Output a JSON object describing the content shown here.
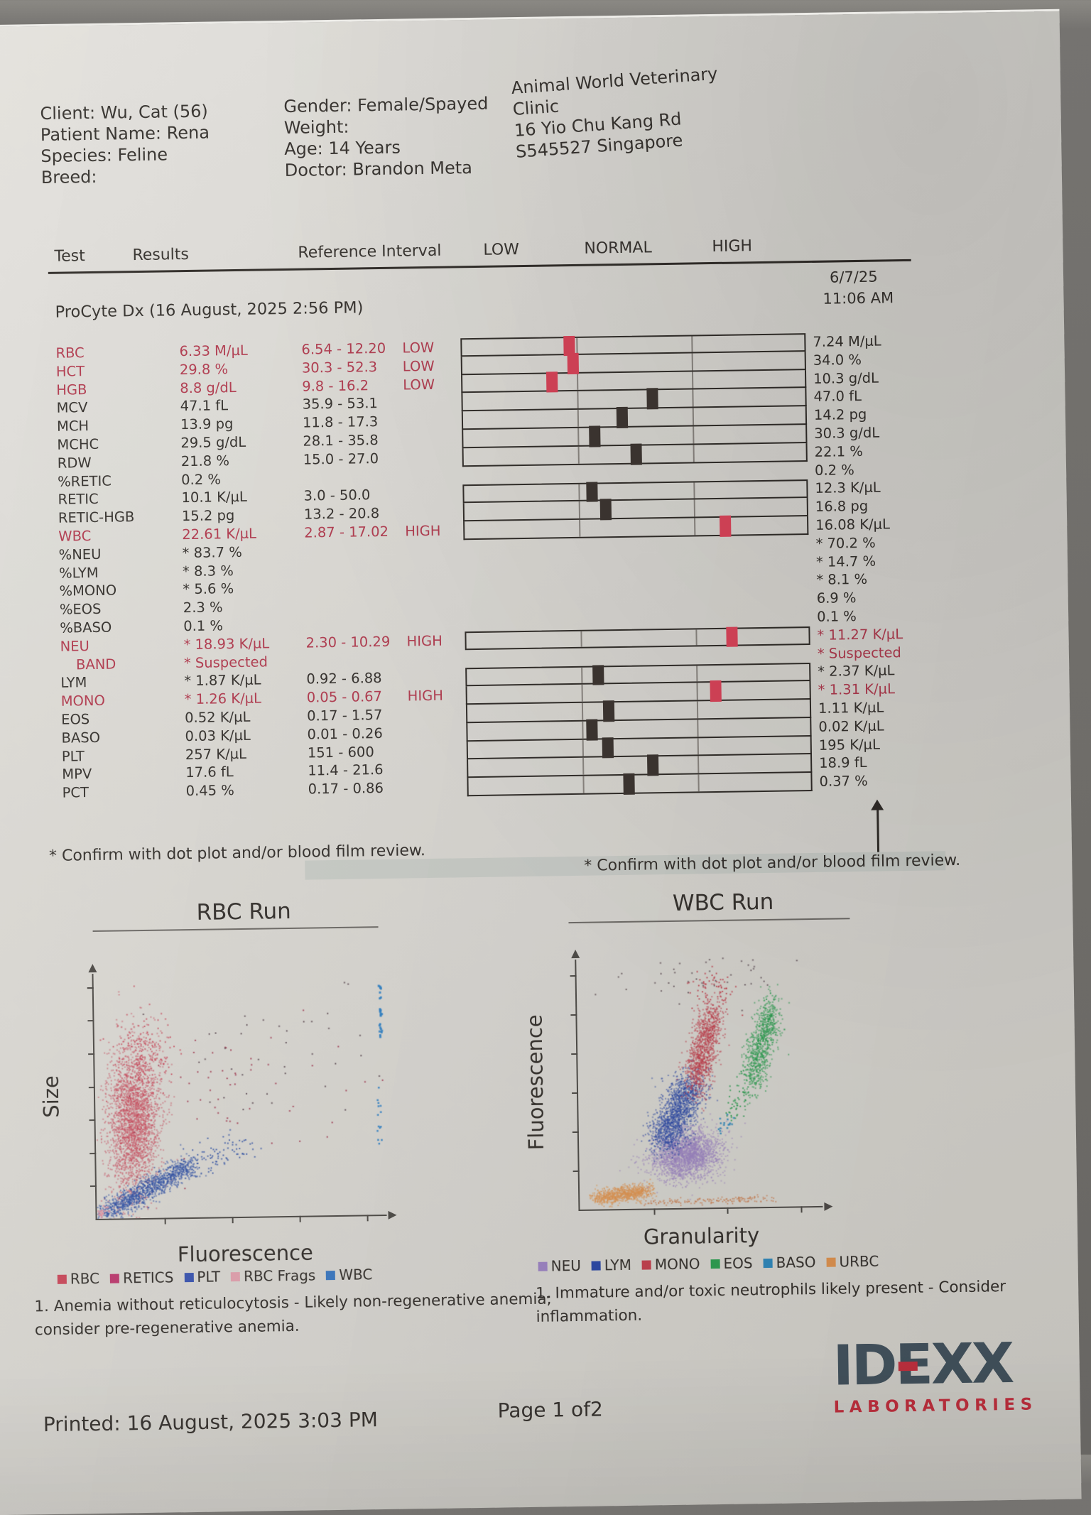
{
  "header": {
    "left": [
      "Client: Wu, Cat (56)",
      "Patient Name: Rena",
      "Species: Feline",
      "Breed:"
    ],
    "middle": [
      "Gender: Female/Spayed",
      "Weight:",
      "Age: 14 Years",
      "Doctor: Brandon Meta"
    ],
    "clinic": [
      "Animal World Veterinary",
      "Clinic",
      "16 Yio Chu Kang Rd",
      "S545527 Singapore"
    ]
  },
  "table": {
    "columns": [
      "Test",
      "Results",
      "Reference Interval",
      "LOW",
      "NORMAL",
      "HIGH"
    ],
    "prev_run_date": "6/7/25",
    "prev_run_time": "11:06 AM",
    "section_title": "ProCyte Dx (16 August, 2025 2:56 PM)",
    "footnote": "* Confirm with dot plot and/or blood film review.",
    "footnote_right": "* Confirm with dot plot and/or blood film review.",
    "marker_colors": {
      "abnormal": "#cc4054",
      "normal": "#3a332f"
    },
    "rows": [
      {
        "test": "RBC",
        "result": "6.33 M/µL",
        "ref": "6.54 - 12.20",
        "flag": "LOW",
        "prev": "7.24 M/µL",
        "red": true,
        "prev_red": false,
        "indent": false,
        "bar": {
          "pos": 0.31,
          "red": true,
          "first": true,
          "last": false
        }
      },
      {
        "test": "HCT",
        "result": "29.8 %",
        "ref": "30.3 - 52.3",
        "flag": "LOW",
        "prev": "34.0 %",
        "red": true,
        "prev_red": false,
        "indent": false,
        "bar": {
          "pos": 0.32,
          "red": true,
          "first": false,
          "last": false
        }
      },
      {
        "test": "HGB",
        "result": "8.8 g/dL",
        "ref": "9.8 - 16.2",
        "flag": "LOW",
        "prev": "10.3 g/dL",
        "red": true,
        "prev_red": false,
        "indent": false,
        "bar": {
          "pos": 0.26,
          "red": true,
          "first": false,
          "last": false
        }
      },
      {
        "test": "MCV",
        "result": "47.1 fL",
        "ref": "35.9 - 53.1",
        "flag": "",
        "prev": "47.0 fL",
        "red": false,
        "prev_red": false,
        "indent": false,
        "bar": {
          "pos": 0.55,
          "red": false,
          "first": false,
          "last": false
        }
      },
      {
        "test": "MCH",
        "result": "13.9 pg",
        "ref": "11.8 - 17.3",
        "flag": "",
        "prev": "14.2 pg",
        "red": false,
        "prev_red": false,
        "indent": false,
        "bar": {
          "pos": 0.46,
          "red": false,
          "first": false,
          "last": false
        }
      },
      {
        "test": "MCHC",
        "result": "29.5 g/dL",
        "ref": "28.1 - 35.8",
        "flag": "",
        "prev": "30.3 g/dL",
        "red": false,
        "prev_red": false,
        "indent": false,
        "bar": {
          "pos": 0.38,
          "red": false,
          "first": false,
          "last": false
        }
      },
      {
        "test": "RDW",
        "result": "21.8 %",
        "ref": "15.0 - 27.0",
        "flag": "",
        "prev": "22.1 %",
        "red": false,
        "prev_red": false,
        "indent": false,
        "bar": {
          "pos": 0.5,
          "red": false,
          "first": false,
          "last": true
        }
      },
      {
        "test": "%RETIC",
        "result": "0.2 %",
        "ref": "",
        "flag": "",
        "prev": "0.2 %",
        "red": false,
        "prev_red": false,
        "indent": false,
        "bar": null
      },
      {
        "test": "RETIC",
        "result": "10.1 K/µL",
        "ref": "3.0 - 50.0",
        "flag": "",
        "prev": "12.3 K/µL",
        "red": false,
        "prev_red": false,
        "indent": false,
        "bar": {
          "pos": 0.37,
          "red": false,
          "first": true,
          "last": false
        }
      },
      {
        "test": "RETIC-HGB",
        "result": "15.2 pg",
        "ref": "13.2 - 20.8",
        "flag": "",
        "prev": "16.8 pg",
        "red": false,
        "prev_red": false,
        "indent": false,
        "bar": {
          "pos": 0.41,
          "red": false,
          "first": false,
          "last": false
        }
      },
      {
        "test": "WBC",
        "result": "22.61 K/µL",
        "ref": "2.87 - 17.02",
        "flag": "HIGH",
        "prev": "16.08 K/µL",
        "red": true,
        "prev_red": false,
        "indent": false,
        "bar": {
          "pos": 0.755,
          "red": true,
          "first": false,
          "last": true
        }
      },
      {
        "test": "%NEU",
        "result": "* 83.7 %",
        "ref": "",
        "flag": "",
        "prev": "* 70.2 %",
        "red": false,
        "prev_red": false,
        "indent": false,
        "bar": null
      },
      {
        "test": "%LYM",
        "result": "* 8.3 %",
        "ref": "",
        "flag": "",
        "prev": "* 14.7 %",
        "red": false,
        "prev_red": false,
        "indent": false,
        "bar": null
      },
      {
        "test": "%MONO",
        "result": "* 5.6 %",
        "ref": "",
        "flag": "",
        "prev": "* 8.1 %",
        "red": false,
        "prev_red": false,
        "indent": false,
        "bar": null
      },
      {
        "test": "%EOS",
        "result": "2.3 %",
        "ref": "",
        "flag": "",
        "prev": "6.9 %",
        "red": false,
        "prev_red": false,
        "indent": false,
        "bar": null
      },
      {
        "test": "%BASO",
        "result": "0.1 %",
        "ref": "",
        "flag": "",
        "prev": "0.1 %",
        "red": false,
        "prev_red": false,
        "indent": false,
        "bar": null
      },
      {
        "test": "NEU",
        "result": "* 18.93 K/µL",
        "ref": "2.30 - 10.29",
        "flag": "HIGH",
        "prev": "* 11.27 K/µL",
        "red": true,
        "prev_red": true,
        "indent": false,
        "bar": {
          "pos": 0.77,
          "red": true,
          "first": true,
          "last": true
        }
      },
      {
        "test": "BAND",
        "result": "* Suspected",
        "ref": "",
        "flag": "",
        "prev": "* Suspected",
        "red": true,
        "prev_red": true,
        "indent": true,
        "bar": null
      },
      {
        "test": "LYM",
        "result": "* 1.87 K/µL",
        "ref": "0.92 - 6.88",
        "flag": "",
        "prev": "* 2.37 K/µL",
        "red": false,
        "prev_red": false,
        "indent": false,
        "bar": {
          "pos": 0.38,
          "red": false,
          "first": true,
          "last": false
        }
      },
      {
        "test": "MONO",
        "result": "* 1.26 K/µL",
        "ref": "0.05 - 0.67",
        "flag": "HIGH",
        "prev": "* 1.31 K/µL",
        "red": true,
        "prev_red": true,
        "indent": false,
        "bar": {
          "pos": 0.72,
          "red": true,
          "first": false,
          "last": false
        }
      },
      {
        "test": "EOS",
        "result": "0.52 K/µL",
        "ref": "0.17 - 1.57",
        "flag": "",
        "prev": "1.11 K/µL",
        "red": false,
        "prev_red": false,
        "indent": false,
        "bar": {
          "pos": 0.41,
          "red": false,
          "first": false,
          "last": false
        }
      },
      {
        "test": "BASO",
        "result": "0.03 K/µL",
        "ref": "0.01 - 0.26",
        "flag": "",
        "prev": "0.02 K/µL",
        "red": false,
        "prev_red": false,
        "indent": false,
        "bar": {
          "pos": 0.36,
          "red": false,
          "first": false,
          "last": false
        }
      },
      {
        "test": "PLT",
        "result": "257 K/µL",
        "ref": "151 - 600",
        "flag": "",
        "prev": "195 K/µL",
        "red": false,
        "prev_red": false,
        "indent": false,
        "bar": {
          "pos": 0.405,
          "red": false,
          "first": false,
          "last": false
        }
      },
      {
        "test": "MPV",
        "result": "17.6 fL",
        "ref": "11.4 - 21.6",
        "flag": "",
        "prev": "18.9 fL",
        "red": false,
        "prev_red": false,
        "indent": false,
        "bar": {
          "pos": 0.535,
          "red": false,
          "first": false,
          "last": false
        }
      },
      {
        "test": "PCT",
        "result": "0.45 %",
        "ref": "0.17 - 0.86",
        "flag": "",
        "prev": "0.37 %",
        "red": false,
        "prev_red": false,
        "indent": false,
        "bar": {
          "pos": 0.465,
          "red": false,
          "first": false,
          "last": true
        }
      }
    ]
  },
  "charts": {
    "rbc": {
      "title": "RBC Run",
      "xlabel": "Fluorescence",
      "ylabel": "Size",
      "legend": [
        {
          "label": "RBC",
          "color": "#c8485a"
        },
        {
          "label": "RETICS",
          "color": "#bb3a6e"
        },
        {
          "label": "PLT",
          "color": "#3a55b0"
        },
        {
          "label": "RBC Frags",
          "color": "#dfa0ac"
        },
        {
          "label": "WBC",
          "color": "#3a77c0"
        }
      ],
      "comment_lines": [
        "1. Anemia without reticulocytosis - Likely non-regenerative anemia;",
        "consider pre-regenerative anemia."
      ]
    },
    "wbc": {
      "title": "WBC Run",
      "xlabel": "Granularity",
      "ylabel": "Fluorescence",
      "legend": [
        {
          "label": "NEU",
          "color": "#9b83c2"
        },
        {
          "label": "LYM",
          "color": "#2c49a6"
        },
        {
          "label": "MONO",
          "color": "#c2414e"
        },
        {
          "label": "EOS",
          "color": "#2c9e50"
        },
        {
          "label": "BASO",
          "color": "#3088ba"
        },
        {
          "label": "URBC",
          "color": "#de9350"
        }
      ],
      "comment_lines": [
        "1. Immature and/or toxic neutrophils likely present - Consider",
        "inflammation."
      ]
    }
  },
  "footer": {
    "printed": "Printed: 16 August, 2025 3:03 PM",
    "page": "Page 1 of2",
    "logo_main": "IDEXX",
    "logo_sub": "LABORATORIES"
  },
  "chart_data": [
    {
      "type": "scatter",
      "title": "RBC Run",
      "xlabel": "Fluorescence",
      "ylabel": "Size",
      "legend": [
        "RBC",
        "RETICS",
        "PLT",
        "RBC Frags",
        "WBC"
      ],
      "clusters": [
        {
          "name": "RBC",
          "color": "#c8485a",
          "n": 2600,
          "cx": 0.13,
          "cy": 0.4,
          "sx": 0.045,
          "sy": 0.155,
          "shear": 0.12,
          "alpha": 0.5,
          "size": 2
        },
        {
          "name": "RBC-upper",
          "color": "#c8485a",
          "n": 170,
          "cx": 0.17,
          "cy": 0.66,
          "sx": 0.055,
          "sy": 0.09,
          "alpha": 0.8,
          "size": 2
        },
        {
          "name": "RETICS-sparse",
          "color": "#a23a50",
          "n": 55,
          "cx": 0.45,
          "cy": 0.52,
          "sx": 0.2,
          "sy": 0.16,
          "alpha": 0.9,
          "size": 2
        },
        {
          "name": "WBC-diag",
          "color": "#2d4fa4",
          "n": 1150,
          "line": [
            0.02,
            0.02,
            0.33,
            0.22
          ],
          "jx": 0.02,
          "jy": 0.022,
          "alpha": 0.6,
          "size": 2
        },
        {
          "name": "WBC-diag-ext",
          "color": "#2d4fa4",
          "n": 90,
          "line": [
            0.3,
            0.2,
            0.52,
            0.3
          ],
          "jx": 0.03,
          "jy": 0.03,
          "alpha": 0.8,
          "size": 2
        },
        {
          "name": "dark-scatter",
          "color": "#55424a",
          "n": 40,
          "cx": 0.62,
          "cy": 0.68,
          "sx": 0.2,
          "sy": 0.16,
          "alpha": 0.85,
          "size": 2
        },
        {
          "name": "PLT-column",
          "color": "#2e7fc4",
          "n": 26,
          "line": [
            0.985,
            0.71,
            0.985,
            0.94
          ],
          "jx": 0.002,
          "jy": 0,
          "alpha": 0.9,
          "size": 3
        },
        {
          "name": "PLT-dots",
          "color": "#2e7fc4",
          "n": 14,
          "cx": 0.975,
          "cy": 0.4,
          "sx": 0.006,
          "sy": 0.06,
          "alpha": 0.9,
          "size": 2.5
        },
        {
          "name": "RBC-Frags",
          "color": "#dc93a2",
          "n": 20,
          "cx": 0.015,
          "cy": 0.025,
          "sx": 0.012,
          "sy": 0.015,
          "alpha": 0.9,
          "size": 2.5
        }
      ]
    },
    {
      "type": "scatter",
      "title": "WBC Run",
      "xlabel": "Granularity",
      "ylabel": "Fluorescence",
      "legend": [
        "NEU",
        "LYM",
        "MONO",
        "EOS",
        "BASO",
        "URBC"
      ],
      "clusters": [
        {
          "name": "URBC",
          "color": "#de9350",
          "n": 850,
          "line": [
            0.07,
            0.045,
            0.28,
            0.075
          ],
          "jx": 0.02,
          "jy": 0.016,
          "alpha": 0.55,
          "size": 2
        },
        {
          "name": "URBC-tail",
          "color": "#c97846",
          "n": 150,
          "line": [
            0.28,
            0.025,
            0.8,
            0.035
          ],
          "jx": 0.02,
          "jy": 0.008,
          "alpha": 0.7,
          "size": 1.8
        },
        {
          "name": "NEU",
          "color": "#9b83c2",
          "n": 2300,
          "cx": 0.44,
          "cy": 0.215,
          "sx": 0.07,
          "sy": 0.05,
          "shear": 0.6,
          "alpha": 0.5,
          "size": 2
        },
        {
          "name": "LYM",
          "color": "#2c49a6",
          "n": 1500,
          "line": [
            0.345,
            0.27,
            0.465,
            0.5
          ],
          "jx": 0.038,
          "jy": 0.04,
          "alpha": 0.55,
          "size": 2
        },
        {
          "name": "MONO",
          "color": "#c2414e",
          "n": 1050,
          "line": [
            0.475,
            0.5,
            0.555,
            0.77
          ],
          "jx": 0.028,
          "jy": 0.045,
          "alpha": 0.6,
          "size": 2
        },
        {
          "name": "MONO-top",
          "color": "#c2414e",
          "n": 70,
          "cx": 0.56,
          "cy": 0.875,
          "sx": 0.05,
          "sy": 0.045,
          "alpha": 0.85,
          "size": 2
        },
        {
          "name": "EOS",
          "color": "#2c9e50",
          "n": 820,
          "line": [
            0.71,
            0.5,
            0.8,
            0.8
          ],
          "jx": 0.026,
          "jy": 0.045,
          "alpha": 0.6,
          "size": 2
        },
        {
          "name": "EOS-tail",
          "color": "#2c9e50",
          "n": 60,
          "line": [
            0.62,
            0.38,
            0.72,
            0.52
          ],
          "jx": 0.02,
          "jy": 0.03,
          "alpha": 0.85,
          "size": 2
        },
        {
          "name": "BASO",
          "color": "#3088ba",
          "n": 16,
          "cx": 0.605,
          "cy": 0.335,
          "sx": 0.018,
          "sy": 0.022,
          "alpha": 0.9,
          "size": 2.5
        },
        {
          "name": "top-scatter",
          "color": "#5a4850",
          "n": 45,
          "cx": 0.58,
          "cy": 0.93,
          "sx": 0.19,
          "sy": 0.05,
          "alpha": 0.8,
          "size": 2
        }
      ]
    }
  ]
}
